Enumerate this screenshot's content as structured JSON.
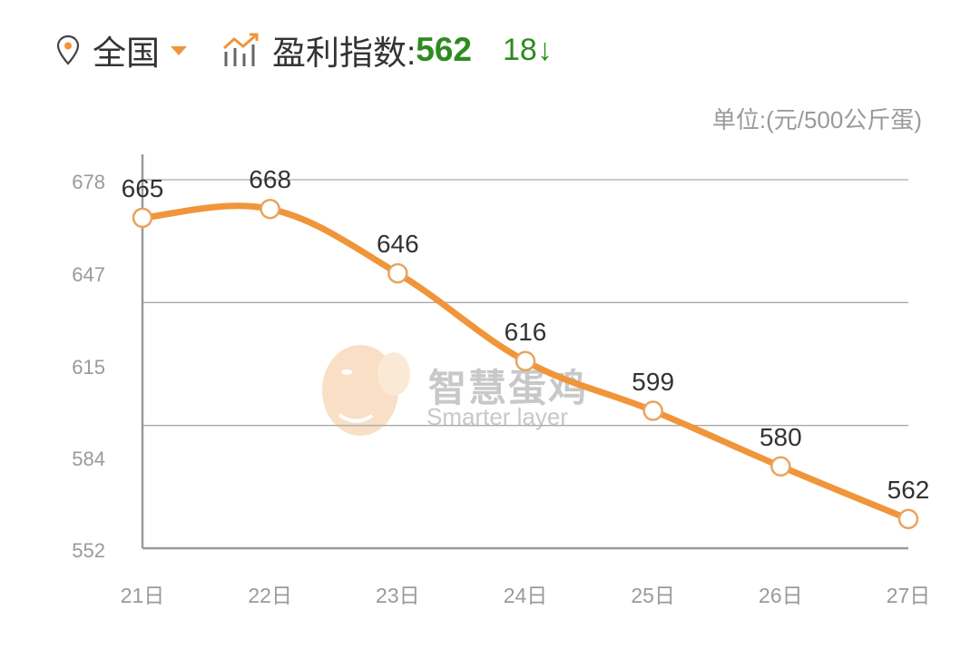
{
  "header": {
    "location_icon": "map-pin-icon",
    "region": "全国",
    "dropdown_icon": "caret-down-icon",
    "trend_icon": "trend-chart-icon",
    "index_label": "盈利指数:",
    "index_value": "562",
    "index_change": "18↓"
  },
  "unit": "单位:(元/500公斤蛋)",
  "watermark": {
    "title": "智慧蛋鸡",
    "subtitle": "Smarter layer"
  },
  "colors": {
    "line": "#f0953a",
    "positive_text": "#2e8b1f",
    "axis": "#999999"
  },
  "chart_data": {
    "type": "line",
    "title": "盈利指数",
    "xlabel": "",
    "ylabel": "单位:(元/500公斤蛋)",
    "categories": [
      "21日",
      "22日",
      "23日",
      "24日",
      "25日",
      "26日",
      "27日"
    ],
    "values": [
      665,
      668,
      646,
      616,
      599,
      580,
      562
    ],
    "y_ticks": [
      "678",
      "647",
      "615",
      "584",
      "552"
    ],
    "ylim": [
      552,
      678
    ],
    "grid": true,
    "legend": "none",
    "data_labels": true
  }
}
